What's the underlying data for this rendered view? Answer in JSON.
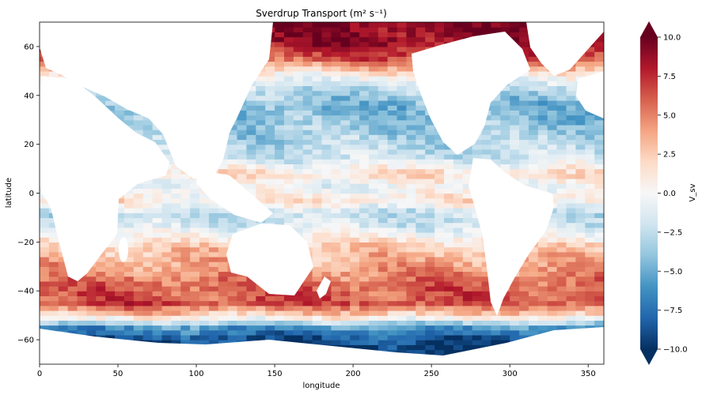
{
  "chart_data": {
    "type": "heatmap",
    "title": "Sverdrup Transport (m² s⁻¹)",
    "xlabel": "longitude",
    "ylabel": "latitude",
    "xlim": [
      0,
      360
    ],
    "ylim": [
      -70,
      70
    ],
    "x_ticks": [
      0,
      50,
      100,
      150,
      200,
      250,
      300,
      350
    ],
    "y_ticks": [
      -60,
      -40,
      -20,
      0,
      20,
      40,
      60
    ],
    "colorbar": {
      "label": "V_sv",
      "range": [
        -10,
        10
      ],
      "ticks": [
        "10.0",
        "7.5",
        "5.0",
        "2.5",
        "0.0",
        "−2.5",
        "−5.0",
        "−7.5",
        "−10.0"
      ],
      "extend": "both",
      "colormap": "RdBu_r",
      "colors": [
        "#053061",
        "#2166ac",
        "#4393c3",
        "#92c5de",
        "#d1e5f0",
        "#f7f7f7",
        "#fddbc7",
        "#f4a582",
        "#d6604d",
        "#b2182b",
        "#67001f"
      ]
    },
    "zonal_pattern": {
      "lat": [
        -66,
        -60,
        -55,
        -50,
        -45,
        -38,
        -30,
        -22,
        -14,
        -8,
        -3,
        3,
        8,
        15,
        25,
        35,
        42,
        48,
        55,
        62
      ],
      "value": [
        -10,
        -9,
        -6,
        2,
        6.5,
        6,
        4,
        2.5,
        -1.5,
        -2.5,
        1.2,
        -0.5,
        1.5,
        -2,
        -3.5,
        -4.5,
        -3,
        0,
        6,
        9
      ]
    },
    "land_color": "#ffffff"
  }
}
